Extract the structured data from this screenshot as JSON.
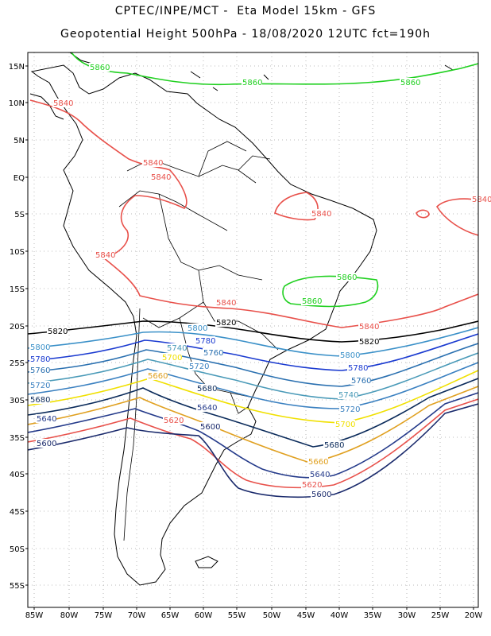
{
  "title": {
    "line1": "CPTEC/INPE/MCT -  Eta Model 15km - GFS",
    "line2": "Geopotential Height 500hPa - 18/08/2020 12UTC fct=190h"
  },
  "axes": {
    "lat_ticks": [
      "15N",
      "10N",
      "5N",
      "EQ",
      "5S",
      "10S",
      "15S",
      "20S",
      "25S",
      "30S",
      "35S",
      "40S",
      "45S",
      "50S",
      "55S"
    ],
    "lon_ticks": [
      "85W",
      "80W",
      "75W",
      "70W",
      "65W",
      "60W",
      "55W",
      "50W",
      "45W",
      "40W",
      "35W",
      "30W",
      "25W",
      "20W"
    ]
  },
  "colors": {
    "5600": "#1a2a6c",
    "5620": "#e8504a",
    "5640": "#243a8a",
    "5660": "#e0a020",
    "5680": "#0a2a5a",
    "5700": "#f0e000",
    "5720": "#3a80c0",
    "5740": "#4a9ab8",
    "5760": "#2a70b0",
    "5780": "#1a3ad0",
    "5800": "#3a90c8",
    "5820": "#000000",
    "5840": "#e8504a",
    "5860": "#20d020",
    "coast": "#000000",
    "grid": "#bbbbbb"
  },
  "contour_labels": [
    {
      "text": "5860",
      "level": "5860"
    },
    {
      "text": "5860",
      "level": "5860"
    },
    {
      "text": "5860",
      "level": "5860"
    },
    {
      "text": "5860",
      "level": "5860"
    },
    {
      "text": "5860",
      "level": "5860"
    },
    {
      "text": "5840",
      "level": "5840"
    },
    {
      "text": "5840",
      "level": "5840"
    },
    {
      "text": "5840",
      "level": "5840"
    },
    {
      "text": "5840",
      "level": "5840"
    },
    {
      "text": "5840",
      "level": "5840"
    },
    {
      "text": "5840",
      "level": "5840"
    },
    {
      "text": "5840",
      "level": "5840"
    },
    {
      "text": "5840",
      "level": "5840"
    },
    {
      "text": "5820",
      "level": "5820"
    },
    {
      "text": "5820",
      "level": "5820"
    },
    {
      "text": "5820",
      "level": "5820"
    },
    {
      "text": "5800",
      "level": "5800"
    },
    {
      "text": "5800",
      "level": "5800"
    },
    {
      "text": "5800",
      "level": "5800"
    },
    {
      "text": "5780",
      "level": "5780"
    },
    {
      "text": "5780",
      "level": "5780"
    },
    {
      "text": "5780",
      "level": "5780"
    },
    {
      "text": "5760",
      "level": "5760"
    },
    {
      "text": "5760",
      "level": "5760"
    },
    {
      "text": "5760",
      "level": "5760"
    },
    {
      "text": "5740",
      "level": "5740"
    },
    {
      "text": "5740",
      "level": "5740"
    },
    {
      "text": "5720",
      "level": "5720"
    },
    {
      "text": "5720",
      "level": "5720"
    },
    {
      "text": "5720",
      "level": "5720"
    },
    {
      "text": "5700",
      "level": "5700"
    },
    {
      "text": "5700",
      "level": "5700"
    },
    {
      "text": "5680",
      "level": "5680"
    },
    {
      "text": "5680",
      "level": "5680"
    },
    {
      "text": "5680",
      "level": "5680"
    },
    {
      "text": "5660",
      "level": "5660"
    },
    {
      "text": "5660",
      "level": "5660"
    },
    {
      "text": "5640",
      "level": "5640"
    },
    {
      "text": "5640",
      "level": "5640"
    },
    {
      "text": "5640",
      "level": "5640"
    },
    {
      "text": "5620",
      "level": "5620"
    },
    {
      "text": "5620",
      "level": "5620"
    },
    {
      "text": "5600",
      "level": "5600"
    },
    {
      "text": "5600",
      "level": "5600"
    },
    {
      "text": "5600",
      "level": "5600"
    }
  ]
}
